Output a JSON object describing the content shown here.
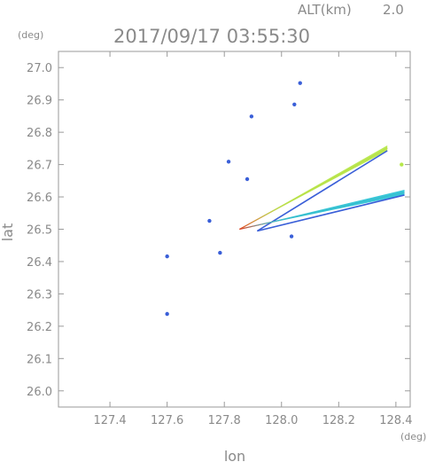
{
  "header": {
    "altitude_label": "ALT(km)",
    "altitude_value": "2.0",
    "timestamp": "2017/09/17 03:55:30"
  },
  "colors": {
    "axis": "#9a9a9a",
    "text": "#8a8a8a",
    "echo_low": "#3a5fd8",
    "echo_mid": "#2ec4d6",
    "echo_high": "#b6e84a",
    "echo_peak": "#e0401c"
  },
  "chart_data": {
    "type": "scatter",
    "title": "2017/09/17 03:55:30",
    "subtitle": "ALT(km) 2.0",
    "xlabel": "lon",
    "ylabel": "lat",
    "x_unit": "(deg)",
    "y_unit": "(deg)",
    "xlim": [
      127.22,
      128.45
    ],
    "ylim": [
      25.95,
      27.05
    ],
    "x_ticks": [
      "127.4",
      "127.6",
      "127.8",
      "128.0",
      "128.2",
      "128.4"
    ],
    "y_ticks": [
      "26.0",
      "26.1",
      "26.2",
      "26.3",
      "26.4",
      "26.5",
      "26.6",
      "26.7",
      "26.8",
      "26.9",
      "27.0"
    ],
    "grid": false,
    "points": [
      {
        "lon": 128.065,
        "lat": 26.952,
        "level": "low"
      },
      {
        "lon": 128.045,
        "lat": 26.886,
        "level": "low"
      },
      {
        "lon": 127.895,
        "lat": 26.849,
        "level": "low"
      },
      {
        "lon": 127.815,
        "lat": 26.709,
        "level": "low"
      },
      {
        "lon": 127.88,
        "lat": 26.655,
        "level": "low"
      },
      {
        "lon": 127.748,
        "lat": 26.526,
        "level": "low"
      },
      {
        "lon": 128.035,
        "lat": 26.478,
        "level": "low"
      },
      {
        "lon": 127.785,
        "lat": 26.427,
        "level": "low"
      },
      {
        "lon": 127.6,
        "lat": 26.416,
        "level": "low"
      },
      {
        "lon": 127.6,
        "lat": 26.238,
        "level": "low"
      },
      {
        "lon": 128.42,
        "lat": 26.7,
        "level": "high"
      }
    ],
    "streaks": [
      {
        "from": [
          127.853,
          26.5
        ],
        "to": [
          128.37,
          26.751
        ],
        "level": "high"
      },
      {
        "from": [
          127.853,
          26.5
        ],
        "to": [
          128.43,
          26.614
        ],
        "level": "mid"
      }
    ]
  }
}
